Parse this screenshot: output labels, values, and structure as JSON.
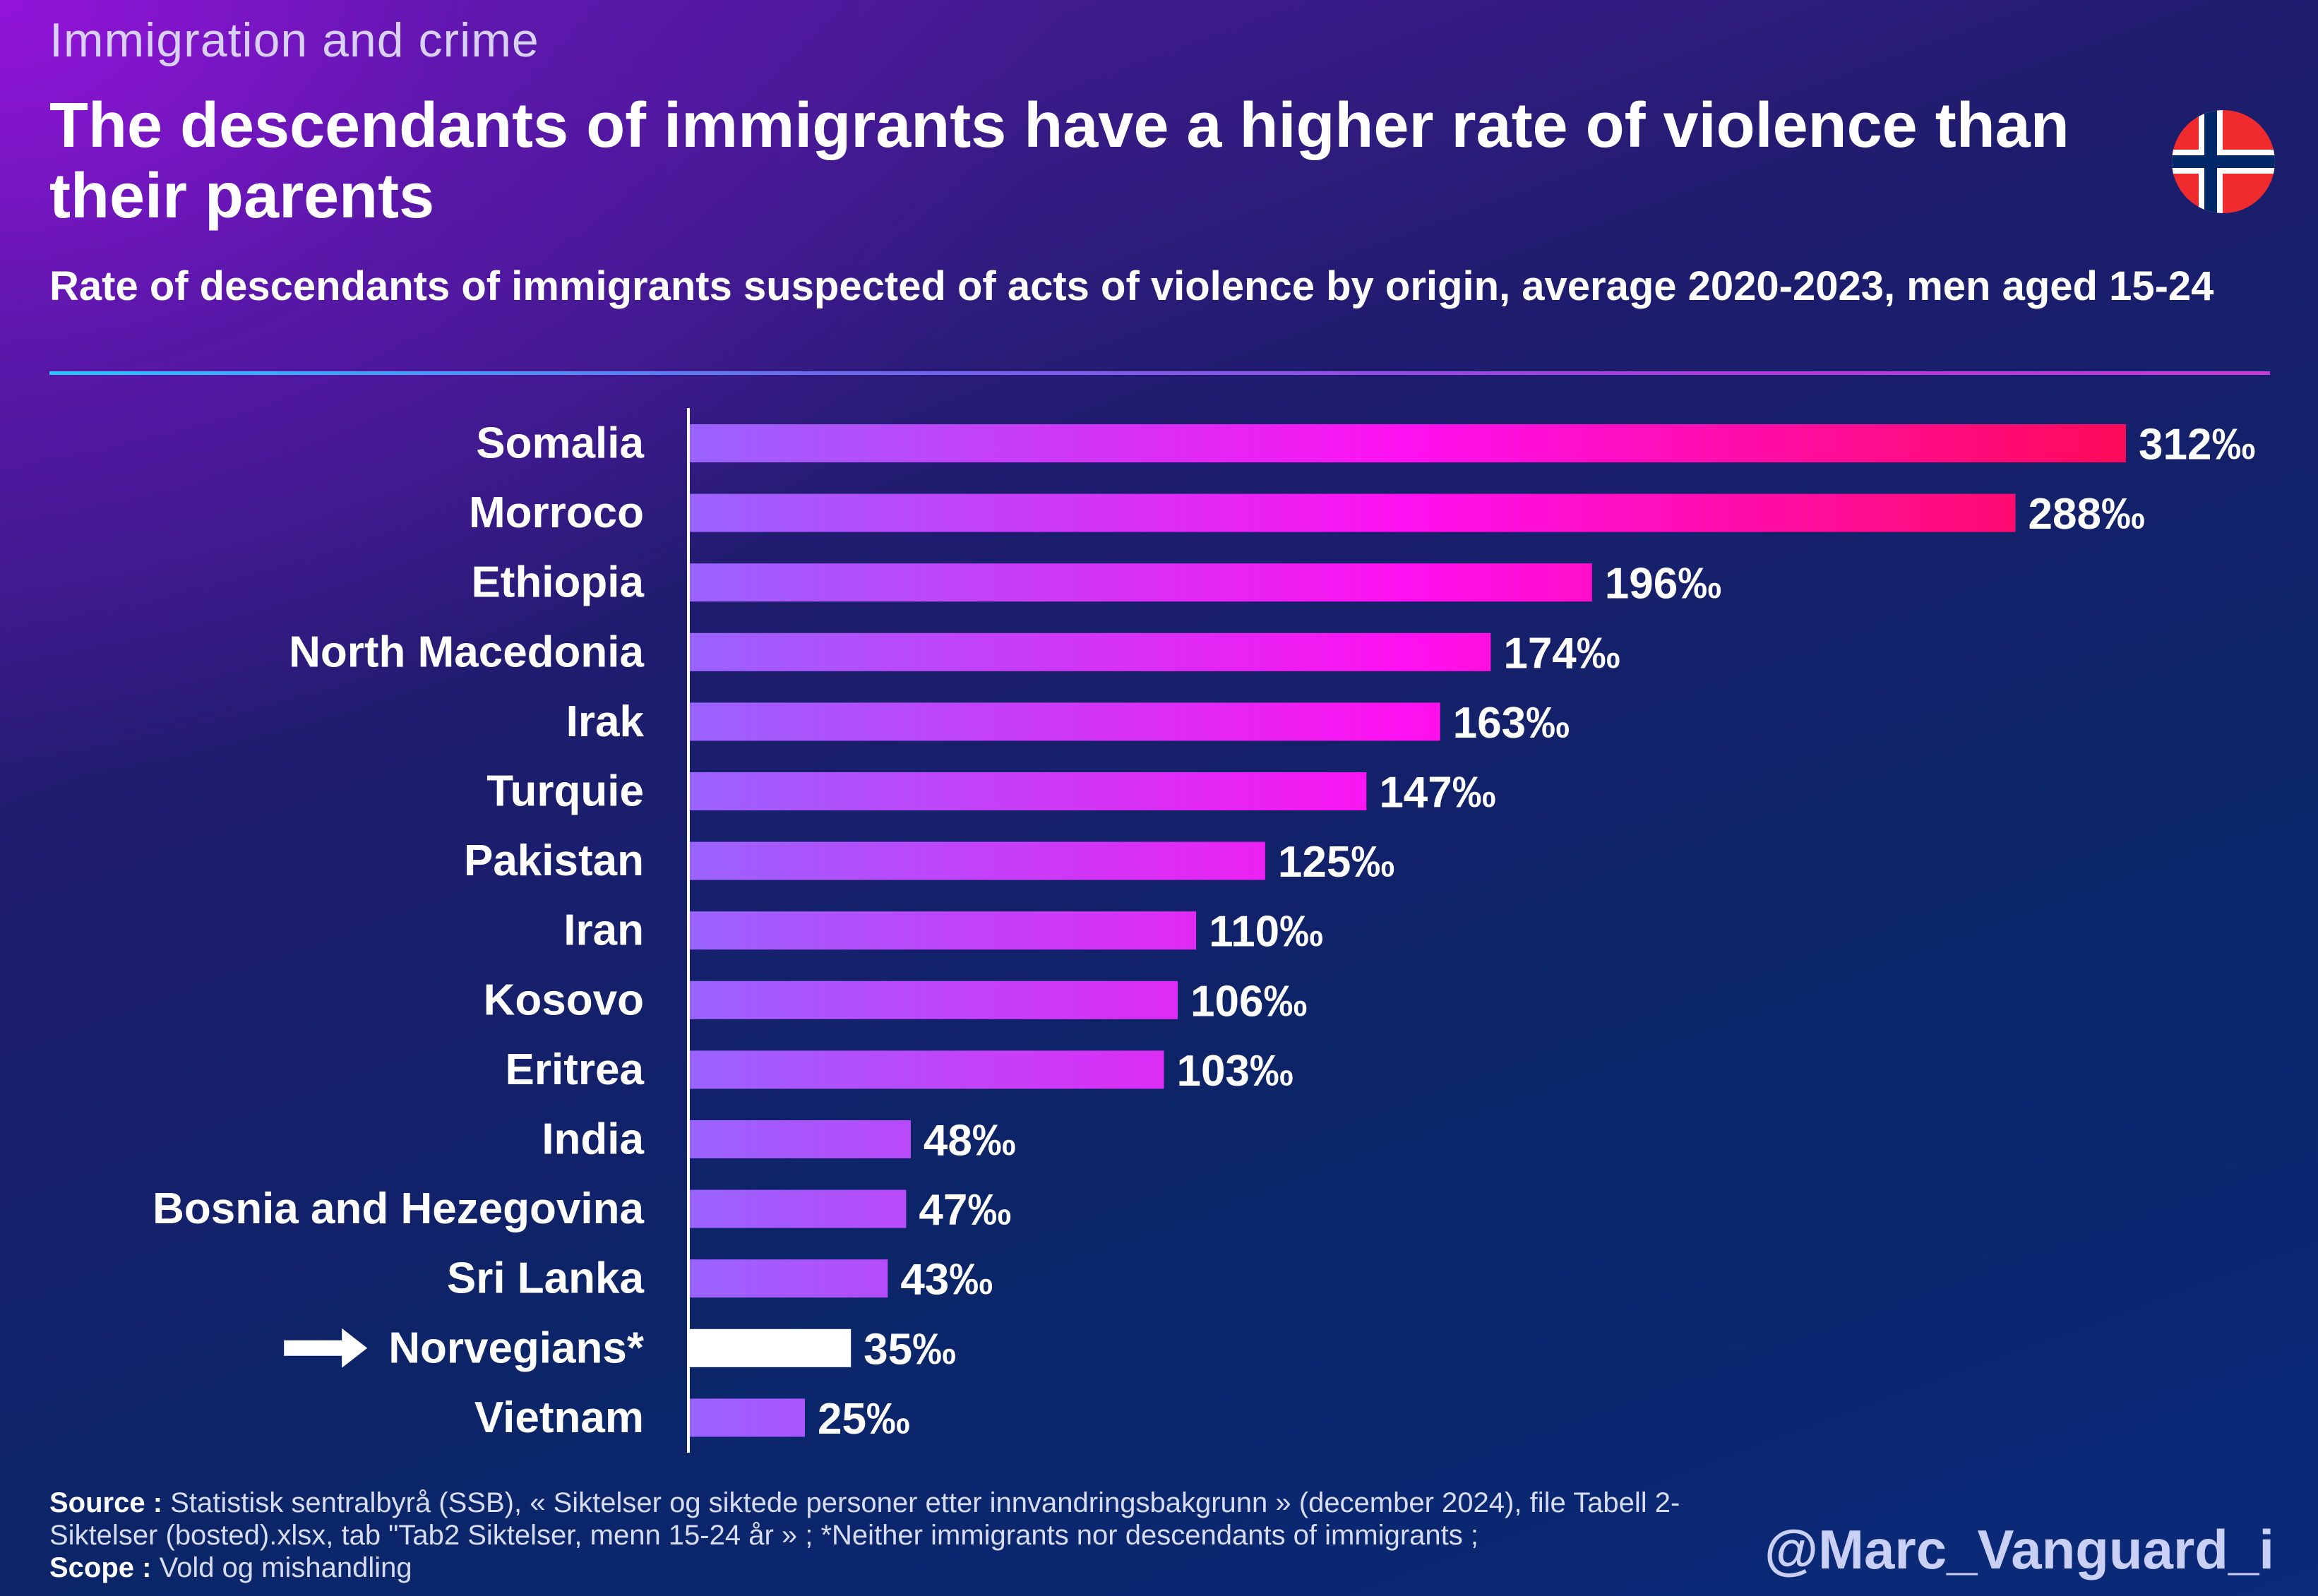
{
  "header": {
    "kicker": "Immigration and crime",
    "title": "The descendants of immigrants have a higher rate of violence than their parents",
    "subtitle": "Rate of descendants of immigrants suspected of acts of violence by origin, average 2020-2023, men aged 15-24",
    "flag_icon": "norway-flag-icon"
  },
  "chart_data": {
    "type": "bar",
    "orientation": "horizontal",
    "title": "Rate of descendants of immigrants suspected of acts of violence by origin, average 2020-2023, men aged 15-24",
    "categories": [
      "Somalia",
      "Morroco",
      "Ethiopia",
      "North Macedonia",
      "Irak",
      "Turquie",
      "Pakistan",
      "Iran",
      "Kosovo",
      "Eritrea",
      "India",
      "Bosnia and Hezegovina",
      "Sri Lanka",
      "Norvegians*",
      "Vietnam"
    ],
    "values": [
      312,
      288,
      196,
      174,
      163,
      147,
      125,
      110,
      106,
      103,
      48,
      47,
      43,
      35,
      25
    ],
    "value_labels": [
      "312‰",
      "288‰",
      "196‰",
      "174‰",
      "163‰",
      "147‰",
      "125‰",
      "110‰",
      "106‰",
      "103‰",
      "48‰",
      "47‰",
      "43‰",
      "35‰",
      "25‰"
    ],
    "unit": "‰",
    "xlim": [
      0,
      312
    ],
    "highlight_category": "Norvegians*",
    "highlight_icon": "right-arrow-icon",
    "grid": false,
    "colors": {
      "bar_start": "#9a63ff",
      "bar_mid": "#ff10f0",
      "bar_end": "#ff0a5a",
      "highlight": "#ffffff"
    }
  },
  "footer": {
    "source_label": "Source :",
    "source_text": "Statistisk sentralbyrå (SSB), « Siktelser og siktede personer etter innvandringsbakgrunn » (december 2024), file Tabell 2-Siktelser (bosted).xlsx, tab \"Tab2 Siktelser, menn 15-24 år » ; *Neither immigrants nor descendants of immigrants ;",
    "scope_label": "Scope :",
    "scope_text": "Vold og mishandling",
    "handle": "@Marc_Vanguard_i"
  }
}
